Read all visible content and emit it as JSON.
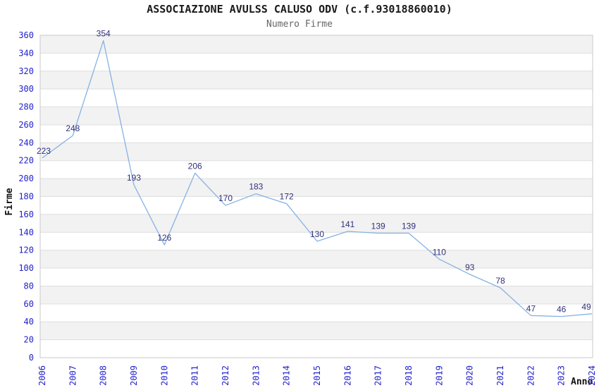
{
  "chart_data": {
    "type": "line",
    "title": "ASSOCIAZIONE AVULSS CALUSO ODV (c.f.93018860010)",
    "subtitle": "Numero Firme",
    "xlabel": "Anno",
    "ylabel": "Firme",
    "categories": [
      "2006",
      "2007",
      "2008",
      "2009",
      "2010",
      "2011",
      "2012",
      "2013",
      "2014",
      "2015",
      "2016",
      "2017",
      "2018",
      "2019",
      "2020",
      "2021",
      "2022",
      "2023",
      "2024"
    ],
    "values": [
      223,
      248,
      354,
      193,
      126,
      206,
      170,
      183,
      172,
      130,
      141,
      139,
      139,
      110,
      93,
      78,
      47,
      46,
      49
    ],
    "ylim": [
      0,
      360
    ],
    "ytick_step": 20,
    "grid": "horizontal-bands",
    "legend": "none",
    "point_labels_shown": true,
    "colors": {
      "line": "#85b2e3",
      "tick_label_blue": "#2222cc",
      "data_label_navy": "#30307c",
      "band_gray": "#f2f2f2",
      "band_white": "#ffffff",
      "gridline": "#dedede",
      "plot_border": "#c9c9c9",
      "title_text": "#1a1a1a",
      "subtitle_text": "#666666"
    }
  }
}
